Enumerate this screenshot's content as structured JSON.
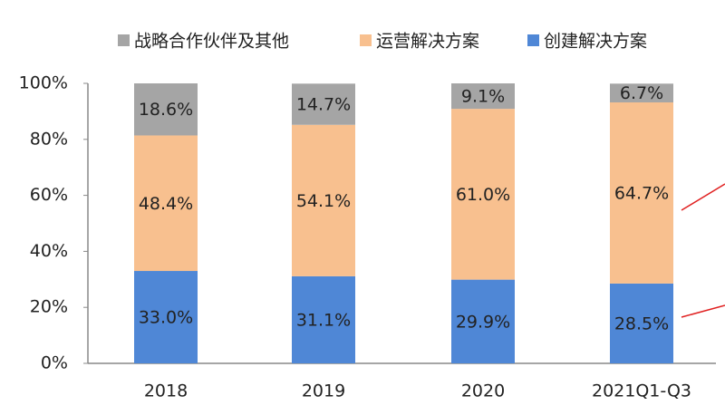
{
  "chart_data": {
    "type": "stacked_bar",
    "categories": [
      "2018",
      "2019",
      "2020",
      "2021Q1-Q3"
    ],
    "series": [
      {
        "name": "创建解决方案",
        "color": "#4f87d6",
        "values": [
          33.0,
          31.1,
          29.9,
          28.5
        ],
        "value_labels": [
          "33.0%",
          "31.1%",
          "29.9%",
          "28.5%"
        ]
      },
      {
        "name": "运营解决方案",
        "color": "#f8c08f",
        "values": [
          48.4,
          54.1,
          61.0,
          64.7
        ],
        "value_labels": [
          "48.4%",
          "54.1%",
          "61.0%",
          "64.7%"
        ]
      },
      {
        "name": "战略合作伙伴及其他",
        "color": "#a5a5a5",
        "values": [
          18.6,
          14.7,
          9.1,
          6.7
        ],
        "value_labels": [
          "18.6%",
          "14.7%",
          "9.1%",
          "6.7%"
        ]
      }
    ],
    "ylim": [
      0,
      100
    ],
    "yticks": [
      {
        "value": 0,
        "label": "0%"
      },
      {
        "value": 20,
        "label": "20%"
      },
      {
        "value": 40,
        "label": "40%"
      },
      {
        "value": 60,
        "label": "60%"
      },
      {
        "value": 80,
        "label": "80%"
      },
      {
        "value": 100,
        "label": "100%"
      }
    ]
  }
}
